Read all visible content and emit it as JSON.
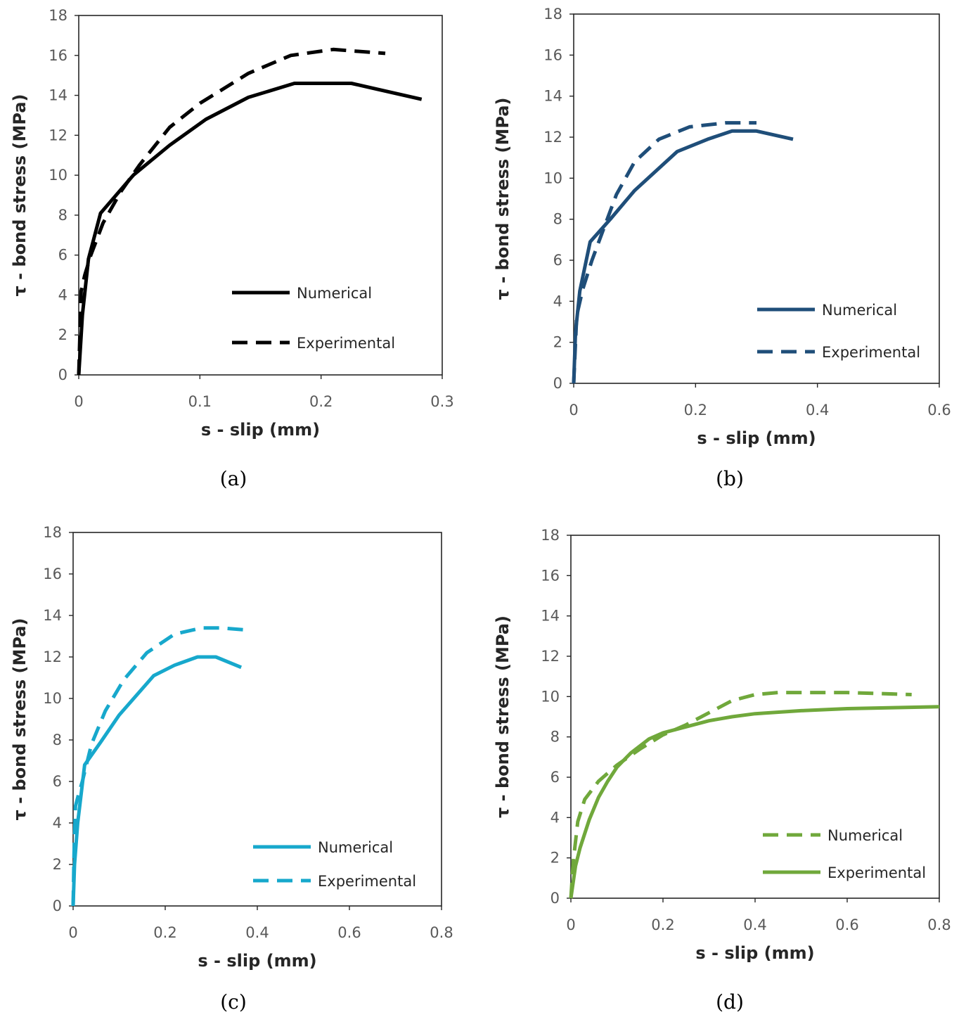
{
  "chart_data": [
    {
      "type": "line",
      "panel": "a",
      "caption": "(a)",
      "xlabel": "s - slip (mm)",
      "ylabel": "τ - bond stress (MPa)",
      "xlim": [
        0,
        0.3
      ],
      "ylim": [
        0,
        18
      ],
      "xticks": [
        "0",
        "0.1",
        "0.2",
        "0.3"
      ],
      "yticks": [
        "0",
        "2",
        "4",
        "6",
        "8",
        "10",
        "12",
        "14",
        "16",
        "18"
      ],
      "legend_position": "lower-right",
      "series": [
        {
          "name": "Numerical",
          "style": "solid",
          "color": "#000000",
          "x": [
            0,
            0.003,
            0.008,
            0.018,
            0.045,
            0.075,
            0.105,
            0.14,
            0.178,
            0.225,
            0.283
          ],
          "y": [
            0,
            3,
            5.8,
            8.1,
            10,
            11.5,
            12.8,
            13.9,
            14.6,
            14.6,
            13.8
          ]
        },
        {
          "name": "Experimental",
          "style": "dashed",
          "color": "#000000",
          "x": [
            0,
            0.002,
            0.005,
            0.01,
            0.02,
            0.035,
            0.05,
            0.075,
            0.1,
            0.14,
            0.175,
            0.21,
            0.253
          ],
          "y": [
            0,
            4.2,
            5,
            6,
            7.6,
            9.2,
            10.5,
            12.4,
            13.6,
            15.1,
            16,
            16.3,
            16.1
          ]
        }
      ]
    },
    {
      "type": "line",
      "panel": "b",
      "caption": "(b)",
      "xlabel": "s - slip (mm)",
      "ylabel": "τ - bond stress (MPa)",
      "xlim": [
        0,
        0.6
      ],
      "ylim": [
        0,
        18
      ],
      "xticks": [
        "0",
        "0.2",
        "0.4",
        "0.6"
      ],
      "yticks": [
        "0",
        "2",
        "4",
        "6",
        "8",
        "10",
        "12",
        "14",
        "16",
        "18"
      ],
      "legend_position": "lower-right",
      "series": [
        {
          "name": "Numerical",
          "style": "solid",
          "color": "#1f4e79",
          "x": [
            0,
            0.003,
            0.01,
            0.027,
            0.06,
            0.1,
            0.17,
            0.22,
            0.26,
            0.3,
            0.36
          ],
          "y": [
            0,
            2.5,
            4.5,
            6.9,
            8,
            9.4,
            11.3,
            11.9,
            12.3,
            12.3,
            11.9
          ]
        },
        {
          "name": "Experimental",
          "style": "dashed",
          "color": "#1f4e79",
          "x": [
            0,
            0.005,
            0.015,
            0.03,
            0.05,
            0.07,
            0.1,
            0.14,
            0.19,
            0.25,
            0.3
          ],
          "y": [
            0,
            3.3,
            4.6,
            6,
            7.6,
            9.2,
            10.8,
            11.9,
            12.5,
            12.7,
            12.7
          ]
        }
      ]
    },
    {
      "type": "line",
      "panel": "c",
      "caption": "(c)",
      "xlabel": "s - slip (mm)",
      "ylabel": "τ - bond stress (MPa)",
      "xlim": [
        0,
        0.8
      ],
      "ylim": [
        0,
        18
      ],
      "xticks": [
        "0",
        "0.2",
        "0.4",
        "0.6",
        "0.8"
      ],
      "yticks": [
        "0",
        "2",
        "4",
        "6",
        "8",
        "10",
        "12",
        "14",
        "16",
        "18"
      ],
      "legend_position": "lower-right",
      "series": [
        {
          "name": "Numerical",
          "style": "solid",
          "color": "#17a8cc",
          "x": [
            0,
            0.003,
            0.01,
            0.025,
            0.06,
            0.1,
            0.175,
            0.22,
            0.27,
            0.31,
            0.365
          ],
          "y": [
            0,
            2,
            4,
            6.8,
            7.9,
            9.2,
            11.1,
            11.6,
            12,
            12,
            11.5
          ]
        },
        {
          "name": "Experimental",
          "style": "dashed",
          "color": "#17a8cc",
          "x": [
            0,
            0.002,
            0.005,
            0.012,
            0.02,
            0.04,
            0.07,
            0.11,
            0.16,
            0.22,
            0.28,
            0.32,
            0.375
          ],
          "y": [
            0,
            2.5,
            4.8,
            5.4,
            6,
            7.8,
            9.4,
            10.9,
            12.2,
            13.1,
            13.4,
            13.4,
            13.3
          ]
        }
      ]
    },
    {
      "type": "line",
      "panel": "d",
      "caption": "(d)",
      "xlabel": "s - slip (mm)",
      "ylabel": "τ - bond stress (MPa)",
      "xlim": [
        0,
        0.8
      ],
      "ylim": [
        0,
        18
      ],
      "xticks": [
        "0",
        "0.2",
        "0.4",
        "0.6",
        "0.8"
      ],
      "yticks": [
        "0",
        "2",
        "4",
        "6",
        "8",
        "10",
        "12",
        "14",
        "16",
        "18"
      ],
      "legend_position": "lower-right",
      "series": [
        {
          "name": "Numerical",
          "style": "dashed",
          "color": "#70a83b",
          "x": [
            0,
            0.005,
            0.015,
            0.03,
            0.06,
            0.1,
            0.15,
            0.2,
            0.25,
            0.3,
            0.35,
            0.4,
            0.45,
            0.5,
            0.6,
            0.74
          ],
          "y": [
            0,
            1.8,
            3.8,
            4.9,
            5.8,
            6.6,
            7.4,
            8.1,
            8.6,
            9.2,
            9.8,
            10.1,
            10.2,
            10.2,
            10.2,
            10.1
          ]
        },
        {
          "name": "Experimental",
          "style": "solid",
          "color": "#70a83b",
          "x": [
            0,
            0.01,
            0.02,
            0.04,
            0.06,
            0.08,
            0.1,
            0.13,
            0.17,
            0.2,
            0.25,
            0.3,
            0.35,
            0.4,
            0.5,
            0.6,
            0.7,
            0.8
          ],
          "y": [
            0,
            1.6,
            2.5,
            3.9,
            5,
            5.8,
            6.5,
            7.2,
            7.9,
            8.2,
            8.5,
            8.8,
            9,
            9.15,
            9.3,
            9.4,
            9.45,
            9.5
          ]
        }
      ]
    }
  ]
}
